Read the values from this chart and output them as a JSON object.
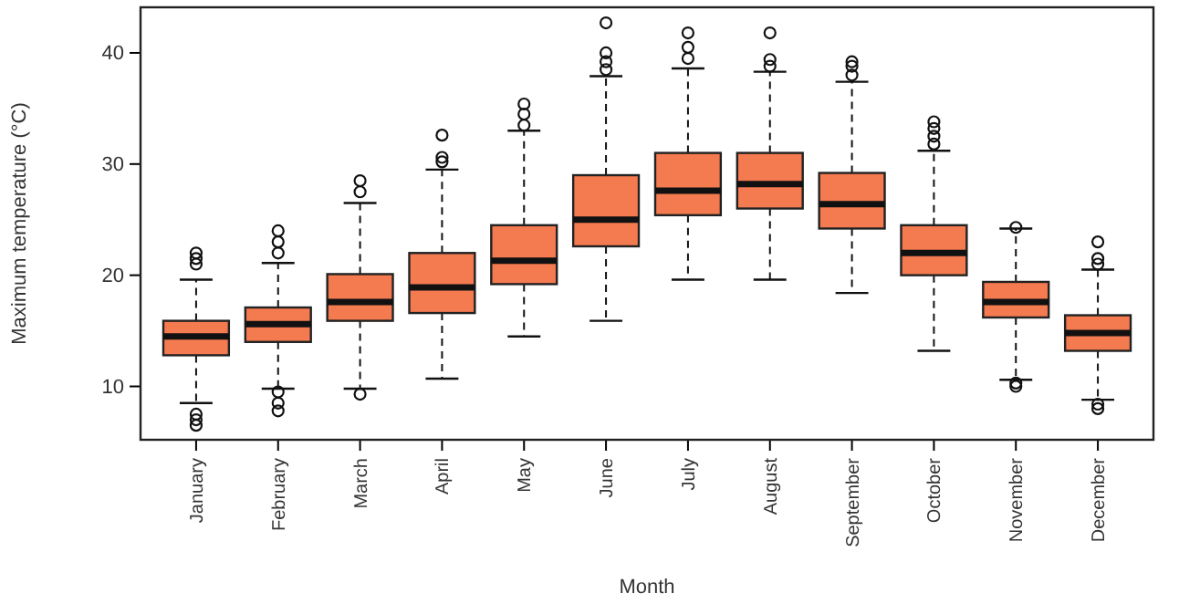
{
  "chart_data": {
    "type": "box",
    "xlabel": "Month",
    "ylabel": "Maximum temperature (°C)",
    "categories": [
      "January",
      "February",
      "March",
      "April",
      "May",
      "June",
      "July",
      "August",
      "September",
      "October",
      "November",
      "December"
    ],
    "ylim": [
      5.2,
      44.1
    ],
    "yticks": [
      10,
      20,
      30,
      40
    ],
    "series": [
      {
        "color": "#f47a50",
        "boxes": [
          {
            "low": 8.5,
            "q1": 12.8,
            "median": 14.5,
            "q3": 15.9,
            "high": 19.6,
            "outliers": [
              21.0,
              21.5,
              22.0,
              7.5,
              7.0,
              6.5
            ]
          },
          {
            "low": 9.8,
            "q1": 14.0,
            "median": 15.6,
            "q3": 17.1,
            "high": 21.1,
            "outliers": [
              22.0,
              23.0,
              24.0,
              9.5,
              8.5,
              7.8
            ]
          },
          {
            "low": 9.8,
            "q1": 15.9,
            "median": 17.6,
            "q3": 20.1,
            "high": 26.5,
            "outliers": [
              9.3,
              27.5,
              28.5
            ]
          },
          {
            "low": 10.7,
            "q1": 16.6,
            "median": 18.9,
            "q3": 22.0,
            "high": 29.5,
            "outliers": [
              30.2,
              30.6,
              32.6
            ]
          },
          {
            "low": 14.5,
            "q1": 19.2,
            "median": 21.3,
            "q3": 24.5,
            "high": 33.0,
            "outliers": [
              33.5,
              34.5,
              35.4
            ]
          },
          {
            "low": 15.9,
            "q1": 22.6,
            "median": 25.0,
            "q3": 29.0,
            "high": 37.9,
            "outliers": [
              38.5,
              39.2,
              40.0,
              42.7
            ]
          },
          {
            "low": 19.6,
            "q1": 25.4,
            "median": 27.6,
            "q3": 31.0,
            "high": 38.6,
            "outliers": [
              39.5,
              40.5,
              41.8
            ]
          },
          {
            "low": 19.6,
            "q1": 26.0,
            "median": 28.2,
            "q3": 31.0,
            "high": 38.3,
            "outliers": [
              38.8,
              39.4,
              41.8
            ]
          },
          {
            "low": 18.4,
            "q1": 24.2,
            "median": 26.4,
            "q3": 29.2,
            "high": 37.4,
            "outliers": [
              38.0,
              38.8,
              39.2
            ]
          },
          {
            "low": 13.2,
            "q1": 20.0,
            "median": 22.0,
            "q3": 24.5,
            "high": 31.2,
            "outliers": [
              31.8,
              32.5,
              33.2,
              33.8
            ]
          },
          {
            "low": 10.6,
            "q1": 16.2,
            "median": 17.6,
            "q3": 19.4,
            "high": 24.2,
            "outliers": [
              24.3,
              10.3,
              10.0
            ]
          },
          {
            "low": 8.8,
            "q1": 13.2,
            "median": 14.8,
            "q3": 16.4,
            "high": 20.5,
            "outliers": [
              21.0,
              21.5,
              23.0,
              8.4,
              8.0
            ]
          }
        ]
      }
    ]
  }
}
